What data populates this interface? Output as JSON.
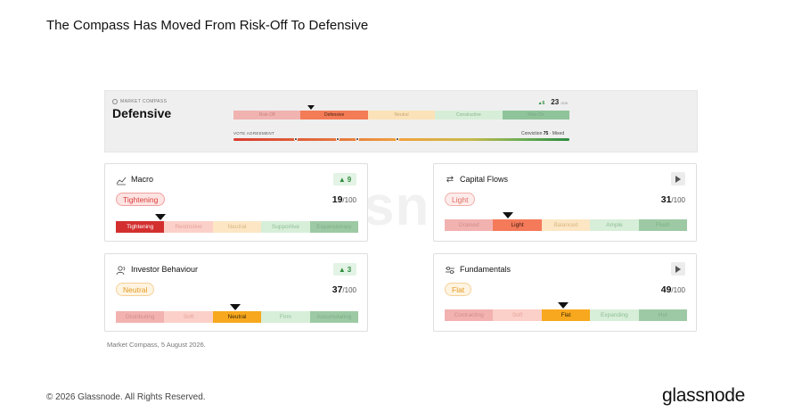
{
  "page_title": "The Compass Has Moved From Risk-Off To Defensive",
  "watermark": "sn",
  "compass": {
    "caption": "MARKET COMPASS",
    "regime": "Defensive",
    "score_delta": "▲6",
    "score": "23",
    "score_max": "/100",
    "scale": [
      {
        "label": "Risk-Off",
        "bg": "#f0b3b0",
        "fg": "#c9827e"
      },
      {
        "label": "Defensive",
        "bg": "#f37b56",
        "fg": "#4a2214"
      },
      {
        "label": "Neutral",
        "bg": "#fbe2b8",
        "fg": "#c7a878"
      },
      {
        "label": "Constructive",
        "bg": "#d6eed7",
        "fg": "#8cb58e"
      },
      {
        "label": "Risk-On",
        "bg": "#8fc39a",
        "fg": "#78a982"
      }
    ],
    "vote_label": "VOTE AGREEMENT",
    "conviction_label": "Conviction",
    "conviction_value": "75",
    "conviction_note": "· Mixed"
  },
  "cards": {
    "macro": {
      "title": "Macro",
      "badge": "9",
      "pill": "Tightening",
      "pill_bg": "#fde4e2",
      "pill_fg": "#d93b3b",
      "pill_border": "#f0a0a0",
      "value": "19",
      "value_max": "/100",
      "scale": [
        {
          "label": "Tightening",
          "bg": "#d32f2f",
          "fg": "#ffffff"
        },
        {
          "label": "Restrictive",
          "bg": "#fbd0c9",
          "fg": "#e5a29a"
        },
        {
          "label": "Neutral",
          "bg": "#fce6c4",
          "fg": "#d9b883"
        },
        {
          "label": "Supportive",
          "bg": "#d7eed9",
          "fg": "#8fbf94"
        },
        {
          "label": "Expansionary",
          "bg": "#9dcaa4",
          "fg": "#7daf85"
        }
      ]
    },
    "capital_flows": {
      "title": "Capital Flows",
      "pill": "Light",
      "pill_bg": "#fdeceb",
      "pill_fg": "#e06b5f",
      "pill_border": "#f2b0a8",
      "value": "31",
      "value_max": "/100",
      "scale": [
        {
          "label": "Drained",
          "bg": "#f2b2b0",
          "fg": "#cf8d8a"
        },
        {
          "label": "Light",
          "bg": "#f47a5a",
          "fg": "#3c1a10"
        },
        {
          "label": "Balanced",
          "bg": "#fce6c4",
          "fg": "#d9b883"
        },
        {
          "label": "Ample",
          "bg": "#d7eed9",
          "fg": "#8fbf94"
        },
        {
          "label": "Flush",
          "bg": "#9dcaa4",
          "fg": "#7daf85"
        }
      ]
    },
    "investor_behaviour": {
      "title": "Investor Behaviour",
      "badge": "3",
      "pill": "Neutral",
      "pill_bg": "#fff4e2",
      "pill_fg": "#e39a1f",
      "pill_border": "#f5d197",
      "value": "37",
      "value_max": "/100",
      "scale": [
        {
          "label": "Distributing",
          "bg": "#f2b2b0",
          "fg": "#cf8d8a"
        },
        {
          "label": "Soft",
          "bg": "#fbd0c9",
          "fg": "#e5a29a"
        },
        {
          "label": "Neutral",
          "bg": "#f7a81e",
          "fg": "#3d2a06"
        },
        {
          "label": "Firm",
          "bg": "#d7eed9",
          "fg": "#8fbf94"
        },
        {
          "label": "Accumulating",
          "bg": "#9dcaa4",
          "fg": "#7daf85"
        }
      ]
    },
    "fundamentals": {
      "title": "Fundamentals",
      "pill": "Flat",
      "pill_bg": "#fff4e2",
      "pill_fg": "#e39a1f",
      "pill_border": "#f5d197",
      "value": "49",
      "value_max": "/100",
      "scale": [
        {
          "label": "Contracting",
          "bg": "#f2b2b0",
          "fg": "#cf8d8a"
        },
        {
          "label": "Soft",
          "bg": "#fbd0c9",
          "fg": "#e5a29a"
        },
        {
          "label": "Flat",
          "bg": "#f7a81e",
          "fg": "#3d2a06"
        },
        {
          "label": "Expanding",
          "bg": "#d7eed9",
          "fg": "#8fbf94"
        },
        {
          "label": "Hot",
          "bg": "#9dcaa4",
          "fg": "#7daf85"
        }
      ]
    }
  },
  "footer_note": "Market Compass, 5 August 2026.",
  "copyright": "© 2026 Glassnode. All Rights Reserved.",
  "logo": "glassnode"
}
